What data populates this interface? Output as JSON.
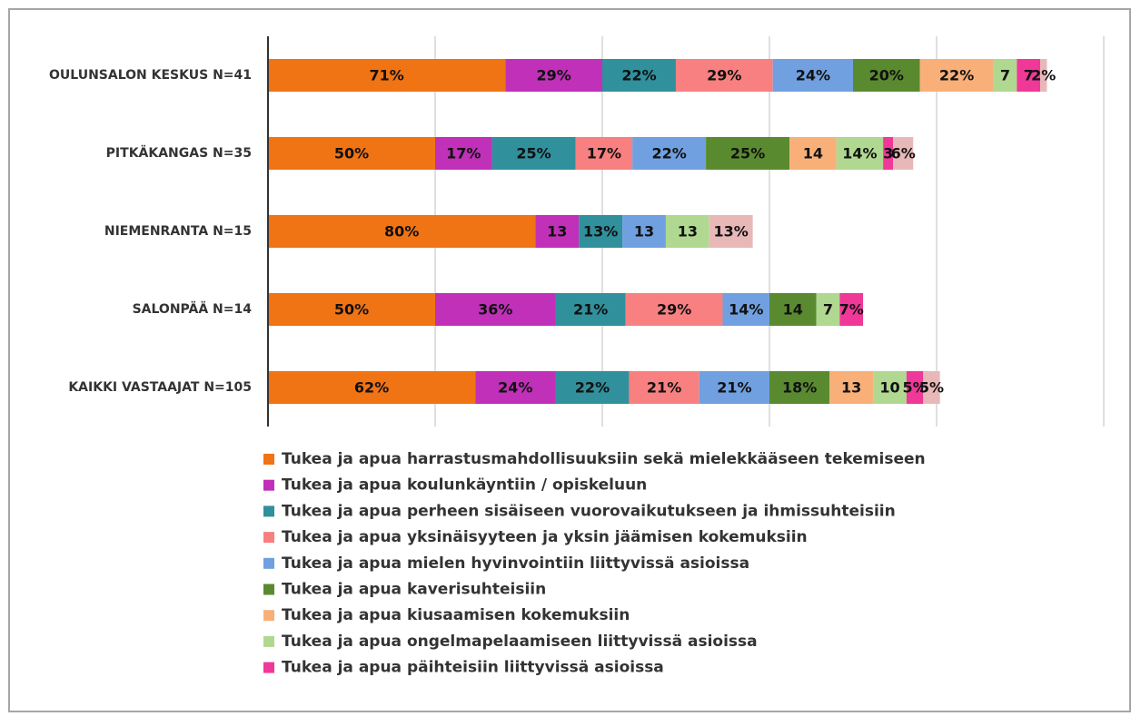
{
  "chart_data": {
    "type": "bar",
    "orientation": "horizontal",
    "stacked": true,
    "categories": [
      "OULUNSALON KESKUS N=41",
      "PITKÄKANGAS N=35",
      "NIEMENRANTA N=15",
      "SALONPÄÄ N=14",
      "KAIKKI VASTAAJAT N=105"
    ],
    "xlim": [
      0,
      250
    ],
    "xticks": [
      0,
      50,
      100,
      150,
      200,
      250
    ],
    "grid": true,
    "legend": "bottom",
    "series": [
      {
        "name": "Tukea ja apua harrastusmahdollisuuksiin sekä mielekkääseen tekemiseen",
        "color": "#f07314",
        "values": [
          71,
          50,
          80,
          50,
          62
        ],
        "value_labels": [
          "71%",
          "50%",
          "80%",
          "50%",
          "62%"
        ]
      },
      {
        "name": "Tukea ja apua koulunkäyntiin / opiskeluun",
        "color": "#c030b8",
        "values": [
          29,
          17,
          13,
          36,
          24
        ],
        "value_labels": [
          "29%",
          "17%",
          "13",
          "36%",
          "24%"
        ]
      },
      {
        "name": "Tukea ja apua perheen sisäiseen vuorovaikutukseen ja ihmissuhteisiin",
        "color": "#30909c",
        "values": [
          22,
          25,
          13,
          21,
          22
        ],
        "value_labels": [
          "22%",
          "25%",
          "13%",
          "21%",
          "22%"
        ]
      },
      {
        "name": "Tukea ja apua yksinäisyyteen ja yksin jäämisen kokemuksiin",
        "color": "#f88080",
        "values": [
          29,
          17,
          null,
          29,
          21
        ],
        "value_labels": [
          "29%",
          "17%",
          null,
          "29%",
          "21%"
        ]
      },
      {
        "name": "Tukea ja apua mielen hyvinvointiin liittyvissä asioissa",
        "color": "#70a0e0",
        "values": [
          24,
          22,
          13,
          14,
          21
        ],
        "value_labels": [
          "24%",
          "22%",
          "13",
          "14%",
          "21%"
        ]
      },
      {
        "name": "Tukea ja apua kaverisuhteisiin",
        "color": "#5a8a30",
        "values": [
          20,
          25,
          null,
          14,
          18
        ],
        "value_labels": [
          "20%",
          "25%",
          null,
          "14",
          "18%"
        ]
      },
      {
        "name": "Tukea ja apua kiusaamisen kokemuksiin",
        "color": "#f8b078",
        "values": [
          22,
          14,
          null,
          null,
          13
        ],
        "value_labels": [
          "22%",
          "14",
          null,
          null,
          "13"
        ]
      },
      {
        "name": "Tukea ja apua ongelmapelaamiseen liittyvissä asioissa",
        "color": "#b0d890",
        "values": [
          7,
          14,
          13,
          7,
          10
        ],
        "value_labels": [
          "7",
          "14%",
          "13",
          "7",
          "10"
        ]
      },
      {
        "name": "Tukea ja apua päihteisiin liittyvissä asioissa",
        "color": "#f03898",
        "values": [
          7,
          3,
          null,
          7,
          5
        ],
        "value_labels": [
          "7",
          "3",
          null,
          "7%",
          "5%"
        ]
      },
      {
        "color": "#e8b8b8",
        "values": [
          2,
          6,
          13,
          null,
          5
        ],
        "value_labels": [
          "2%",
          "6%",
          "13%",
          null,
          "5%"
        ]
      }
    ]
  }
}
